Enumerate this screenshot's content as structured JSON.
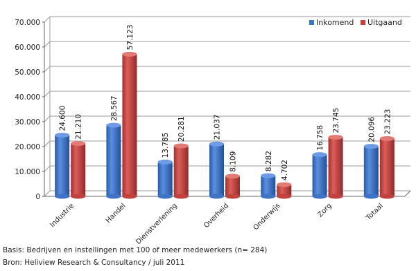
{
  "chart_data": {
    "type": "bar",
    "style": "3d-cylinder",
    "categories": [
      "Industrie",
      "Handel",
      "Dienstverlening",
      "Overheid",
      "Onderwijs",
      "Zorg",
      "Totaal"
    ],
    "series": [
      {
        "name": "Inkomend",
        "color": "#3f73c4",
        "values": [
          24600,
          28567,
          13785,
          21037,
          8282,
          16758,
          20096
        ],
        "labels": [
          "24.600",
          "28.567",
          "13.785",
          "21.037",
          "8.282",
          "16.758",
          "20.096"
        ]
      },
      {
        "name": "Uitgaand",
        "color": "#c0413d",
        "values": [
          21210,
          57123,
          20281,
          8109,
          4702,
          23745,
          23223
        ],
        "labels": [
          "21.210",
          "57.123",
          "20.281",
          "8.109",
          "4.702",
          "23.745",
          "23.223"
        ]
      }
    ],
    "yticks": [
      {
        "value": 0,
        "label": "0"
      },
      {
        "value": 10000,
        "label": "10.000"
      },
      {
        "value": 20000,
        "label": "20.000"
      },
      {
        "value": 30000,
        "label": "30.000"
      },
      {
        "value": 40000,
        "label": "40.000"
      },
      {
        "value": 50000,
        "label": "50.000"
      },
      {
        "value": 60000,
        "label": "60.000"
      },
      {
        "value": 70000,
        "label": "70.000"
      }
    ],
    "ylim": [
      0,
      70000
    ],
    "grid": true,
    "legend_position": "top-right",
    "title": "",
    "xlabel": "",
    "ylabel": ""
  },
  "footnotes": {
    "basis": "Basis: Bedrijven en instellingen met 100 of meer medewerkers (n= 284)",
    "bron": "Bron: Heliview Research & Consultancy / juli 2011"
  }
}
